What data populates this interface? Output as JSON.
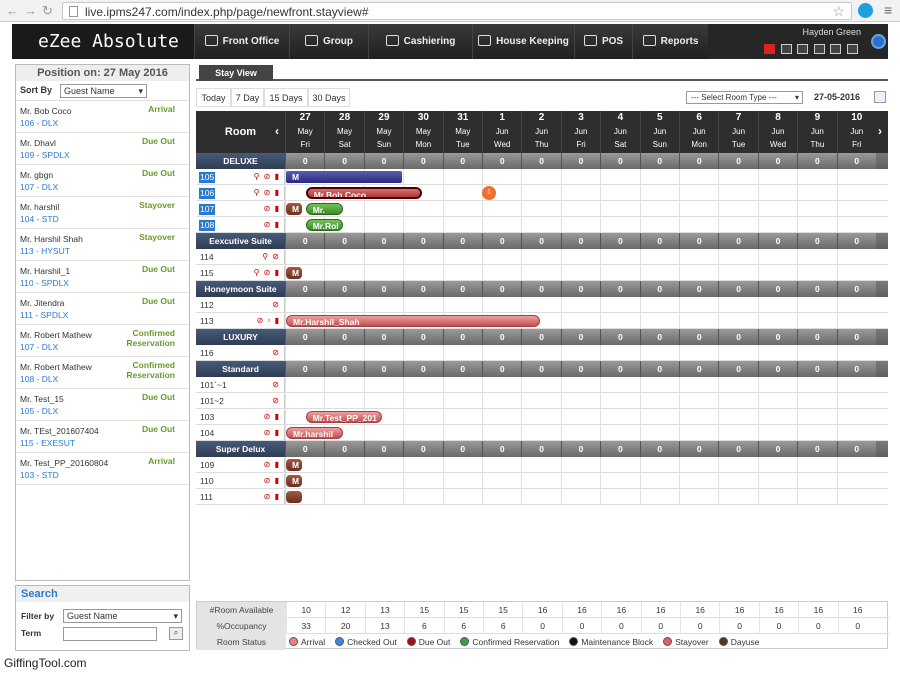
{
  "browser": {
    "url": "live.ipms247.com/index.php/page/newfront.stayview#"
  },
  "app": {
    "logo": "eZee Absolute",
    "user": "Hayden Green"
  },
  "nav": [
    {
      "label": "Front Office",
      "icon": "front-office-icon"
    },
    {
      "label": "Group",
      "icon": "group-icon"
    },
    {
      "label": "Cashiering",
      "icon": "cashiering-icon"
    },
    {
      "label": "House Keeping",
      "icon": "housekeeping-icon"
    },
    {
      "label": "POS",
      "icon": "pos-icon"
    },
    {
      "label": "Reports",
      "icon": "reports-icon"
    }
  ],
  "left_panel": {
    "position_label": "Position on: 27 May 2016",
    "sort_by_label": "Sort By",
    "sort_by_value": "Guest Name",
    "guests": [
      {
        "name": "Mr. Bob Coco",
        "room": "106 - DLX",
        "status": "Arrival"
      },
      {
        "name": "Mr. Dhavl",
        "room": "109 - SPDLX",
        "status": "Due Out"
      },
      {
        "name": "Mr. gbgn",
        "room": "107 - DLX",
        "status": "Due Out"
      },
      {
        "name": "Mr. harshil",
        "room": "104 - STD",
        "status": "Stayover"
      },
      {
        "name": "Mr. Harshil Shah",
        "room": "113 - HYSUT",
        "status": "Stayover"
      },
      {
        "name": "Mr. Harshil_1",
        "room": "110 - SPDLX",
        "status": "Due Out"
      },
      {
        "name": "Mr. Jitendra",
        "room": "111 - SPDLX",
        "status": "Due Out"
      },
      {
        "name": "Mr. Robert Mathew",
        "room": "107 - DLX",
        "status": "Confirmed Reservation"
      },
      {
        "name": "Mr. Robert Mathew",
        "room": "108 - DLX",
        "status": "Confirmed Reservation"
      },
      {
        "name": "Mr. Test_15",
        "room": "105 - DLX",
        "status": "Due Out"
      },
      {
        "name": "Mr. TEst_201607404",
        "room": "115 - EXESUT",
        "status": "Due Out"
      },
      {
        "name": "Mr. Test_PP_20160804",
        "room": "103 - STD",
        "status": "Arrival"
      }
    ]
  },
  "search": {
    "title": "Search",
    "filter_label": "Filter by",
    "filter_value": "Guest Name",
    "term_label": "Term"
  },
  "stay_view": {
    "tab": "Stay View",
    "view_buttons": [
      "Today",
      "7 Day",
      "15 Days",
      "30 Days"
    ],
    "room_type_placeholder": "--- Select Room Type ---",
    "date": "27-05-2016",
    "room_header": "Room",
    "days": [
      {
        "d": "27",
        "m": "May",
        "w": "Fri"
      },
      {
        "d": "28",
        "m": "May",
        "w": "Sat"
      },
      {
        "d": "29",
        "m": "May",
        "w": "Sun"
      },
      {
        "d": "30",
        "m": "May",
        "w": "Mon"
      },
      {
        "d": "31",
        "m": "May",
        "w": "Tue"
      },
      {
        "d": "1",
        "m": "Jun",
        "w": "Wed"
      },
      {
        "d": "2",
        "m": "Jun",
        "w": "Thu"
      },
      {
        "d": "3",
        "m": "Jun",
        "w": "Fri"
      },
      {
        "d": "4",
        "m": "Jun",
        "w": "Sat"
      },
      {
        "d": "5",
        "m": "Jun",
        "w": "Sun"
      },
      {
        "d": "6",
        "m": "Jun",
        "w": "Mon"
      },
      {
        "d": "7",
        "m": "Jun",
        "w": "Tue"
      },
      {
        "d": "8",
        "m": "Jun",
        "w": "Wed"
      },
      {
        "d": "9",
        "m": "Jun",
        "w": "Thu"
      },
      {
        "d": "10",
        "m": "Jun",
        "w": "Fri"
      }
    ],
    "rows": [
      {
        "type": "cat",
        "name": "DELUXE",
        "counts": [
          "0",
          "0",
          "0",
          "0",
          "0",
          "0",
          "0",
          "0",
          "0",
          "0",
          "0",
          "0",
          "0",
          "0",
          "0"
        ]
      },
      {
        "type": "room",
        "num": "105",
        "hl": true,
        "icons": "⚲ ⊘ ▮"
      },
      {
        "type": "room",
        "num": "106",
        "hl": true,
        "icons": "⚲ ⊘ ▮"
      },
      {
        "type": "room",
        "num": "107",
        "hl": true,
        "icons": "⊘ ▮"
      },
      {
        "type": "room",
        "num": "108",
        "hl": true,
        "icons": "⊘ ▮"
      },
      {
        "type": "cat",
        "name": "Eexcutive Suite",
        "counts": [
          "0",
          "0",
          "0",
          "0",
          "0",
          "0",
          "0",
          "0",
          "0",
          "0",
          "0",
          "0",
          "0",
          "0",
          "0"
        ]
      },
      {
        "type": "room",
        "num": "114",
        "icons": "⚲ ⊘"
      },
      {
        "type": "room",
        "num": "115",
        "icons": "⚲ ⊘ ▮"
      },
      {
        "type": "cat",
        "name": "Honeymoon Suite",
        "counts": [
          "0",
          "0",
          "0",
          "0",
          "0",
          "0",
          "0",
          "0",
          "0",
          "0",
          "0",
          "0",
          "0",
          "0",
          "0"
        ]
      },
      {
        "type": "room",
        "num": "112",
        "icons": "⊘"
      },
      {
        "type": "room",
        "num": "113",
        "icons": "⊘ ▫ ▮"
      },
      {
        "type": "cat",
        "name": "LUXURY",
        "counts": [
          "0",
          "0",
          "0",
          "0",
          "0",
          "0",
          "0",
          "0",
          "0",
          "0",
          "0",
          "0",
          "0",
          "0",
          "0"
        ]
      },
      {
        "type": "room",
        "num": "116",
        "icons": "⊘"
      },
      {
        "type": "cat",
        "name": "Standard",
        "counts": [
          "0",
          "0",
          "0",
          "0",
          "0",
          "0",
          "0",
          "0",
          "0",
          "0",
          "0",
          "0",
          "0",
          "0",
          "0"
        ]
      },
      {
        "type": "room",
        "num": "101`~1",
        "icons": "⊘"
      },
      {
        "type": "room",
        "num": "101~2",
        "icons": "⊘"
      },
      {
        "type": "room",
        "num": "103",
        "icons": "⊘ ▮"
      },
      {
        "type": "room",
        "num": "104",
        "icons": "⊘ ▮"
      },
      {
        "type": "cat",
        "name": "Super Delux",
        "counts": [
          "0",
          "0",
          "0",
          "0",
          "0",
          "0",
          "0",
          "0",
          "0",
          "0",
          "0",
          "0",
          "0",
          "0",
          "0"
        ]
      },
      {
        "type": "room",
        "num": "109",
        "icons": "⊘ ▮"
      },
      {
        "type": "room",
        "num": "110",
        "icons": "⊘ ▮"
      },
      {
        "type": "room",
        "num": "111",
        "icons": "⊘ ▮"
      }
    ],
    "bookings": [
      {
        "row": 1,
        "start": 0,
        "span": 3.0,
        "label": "M",
        "style": "blue"
      },
      {
        "row": 2,
        "start": 0.5,
        "span": 3.0,
        "label": "Mr.Bob Coco",
        "style": "sel2"
      },
      {
        "row": 3,
        "start": 0,
        "span": 0.45,
        "label": "M",
        "style": "brown"
      },
      {
        "row": 3,
        "start": 0.5,
        "span": 1.0,
        "label": "Mr.",
        "style": "green"
      },
      {
        "row": 4,
        "start": 0.5,
        "span": 1.0,
        "label": "Mr.Rol",
        "style": "green"
      },
      {
        "row": 7,
        "start": 0,
        "span": 0.45,
        "label": "M",
        "style": "brown"
      },
      {
        "row": 10,
        "start": 0,
        "span": 6.5,
        "label": "Mr.Harshil_Shah",
        "style": "stay"
      },
      {
        "row": 16,
        "start": 0.5,
        "span": 2.0,
        "label": "Mr.Test_PP_201",
        "style": "stay"
      },
      {
        "row": 17,
        "start": 0,
        "span": 1.5,
        "label": "Mr.harshil",
        "style": "stay"
      },
      {
        "row": 19,
        "start": 0,
        "span": 0.45,
        "label": "M",
        "style": "brown"
      },
      {
        "row": 20,
        "start": 0,
        "span": 0.45,
        "label": "M",
        "style": "brown"
      },
      {
        "row": 21,
        "start": 0,
        "span": 0.45,
        "label": "",
        "style": "brown"
      }
    ],
    "badge": {
      "row": 2,
      "col": 5,
      "label": "1"
    }
  },
  "stats": {
    "available_label": "#Room Available",
    "available": [
      "10",
      "12",
      "13",
      "15",
      "15",
      "15",
      "16",
      "16",
      "16",
      "16",
      "16",
      "16",
      "16",
      "16",
      "16"
    ],
    "occupancy_label": "%Occupancy",
    "occupancy": [
      "33",
      "20",
      "13",
      "6",
      "6",
      "6",
      "0",
      "0",
      "0",
      "0",
      "0",
      "0",
      "0",
      "0",
      "0"
    ],
    "status_label": "Room Status",
    "legend": [
      {
        "label": "Arrival",
        "color": "#f08080"
      },
      {
        "label": "Checked Out",
        "color": "#3a8ae0"
      },
      {
        "label": "Due Out",
        "color": "#a01010"
      },
      {
        "label": "Confirmed Reservation",
        "color": "#3aa040"
      },
      {
        "label": "Maintenance Block",
        "color": "#111111"
      },
      {
        "label": "Stayover",
        "color": "#e06060"
      },
      {
        "label": "Dayuse",
        "color": "#5a3020"
      }
    ]
  },
  "watermark": "GiffingTool.com"
}
